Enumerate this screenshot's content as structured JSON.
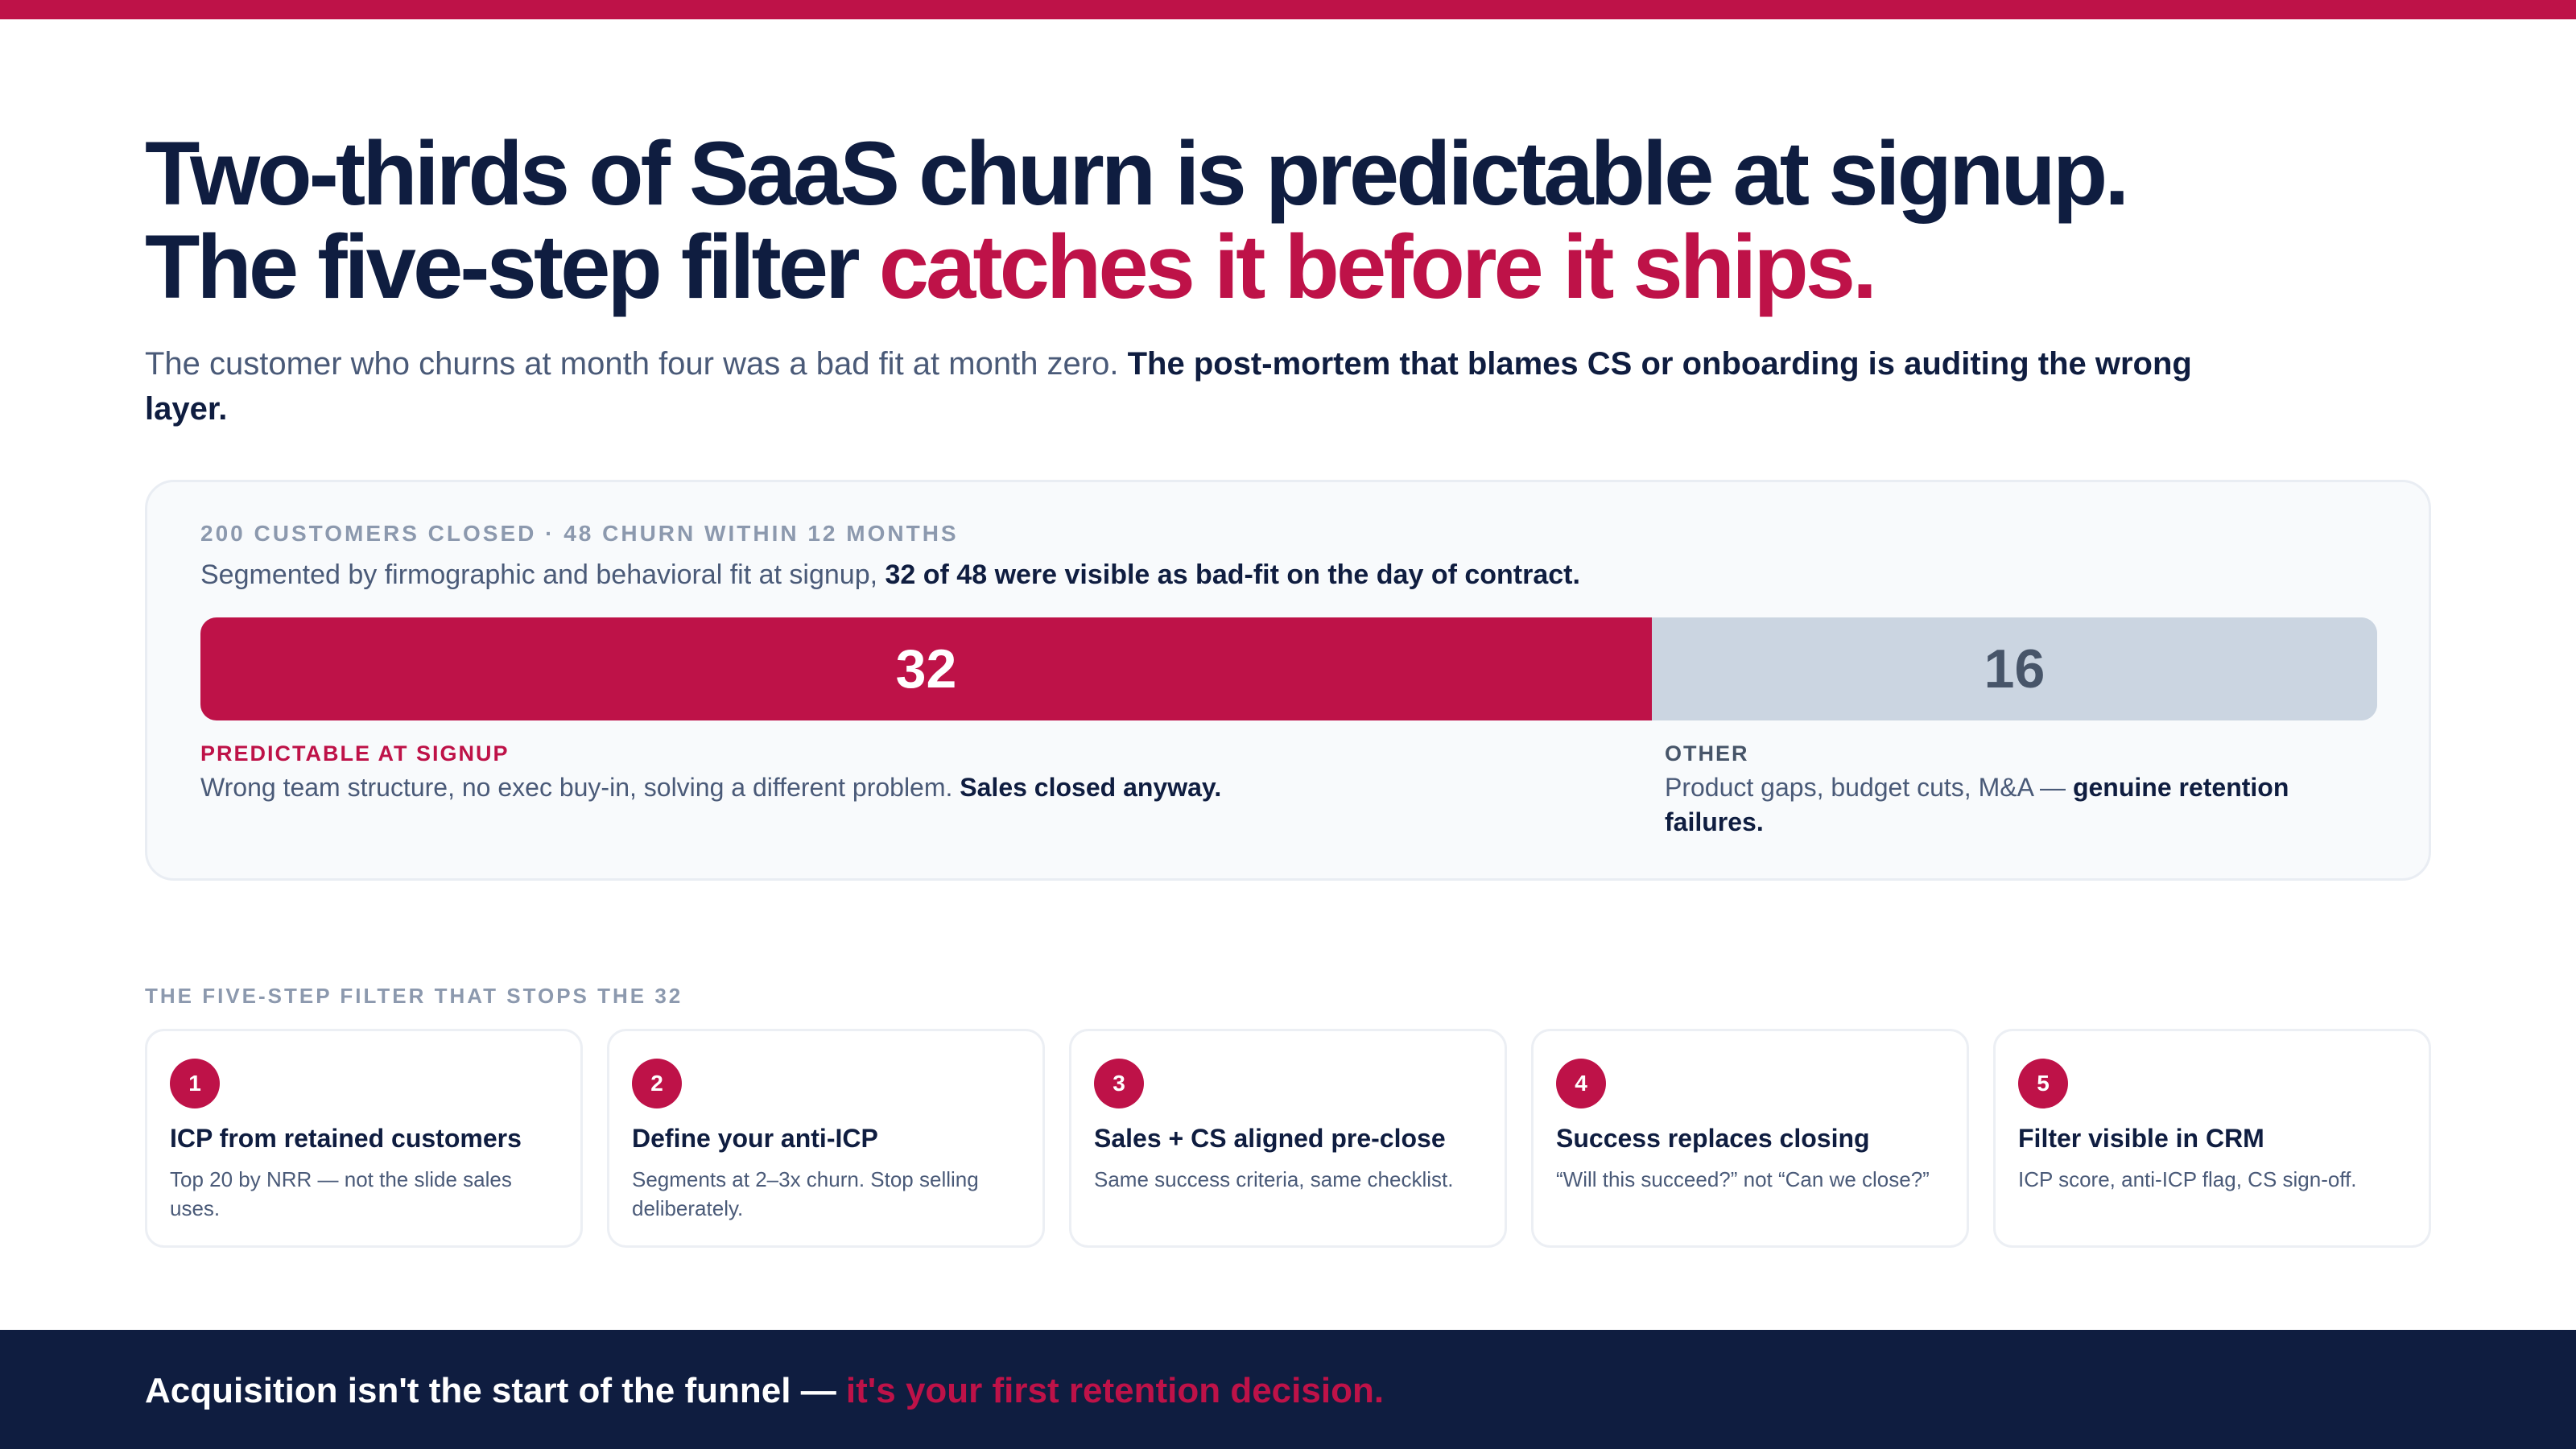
{
  "colors": {
    "accent": "#be1248",
    "navy": "#0f1d40",
    "muted": "#4a5a78",
    "other_bar": "#cbd5e1"
  },
  "headline": {
    "line1": "Two-thirds of SaaS churn is predictable at signup.",
    "line2_plain": "The five-step filter ",
    "line2_accent": "catches it before it ships."
  },
  "subhead": {
    "plain": "The customer who churns at month four was a bad fit at month zero. ",
    "bold": "The post-mortem that blames CS or onboarding is auditing the wrong layer."
  },
  "panel": {
    "eyebrow": "200 CUSTOMERS CLOSED · 48 CHURN WITHIN 12 MONTHS",
    "desc_plain": "Segmented by firmographic and behavioral fit at signup, ",
    "desc_bold": "32 of 48 were visible as bad-fit on the day of contract.",
    "total": 48,
    "segments": [
      {
        "value": 32,
        "label": "32",
        "title": "PREDICTABLE AT SIGNUP",
        "text_plain": "Wrong team structure, no exec buy-in, solving a different problem. ",
        "text_bold": "Sales closed anyway."
      },
      {
        "value": 16,
        "label": "16",
        "title": "OTHER",
        "text_plain": "Product gaps, budget cuts, M&A — ",
        "text_bold": "genuine retention failures."
      }
    ]
  },
  "steps": {
    "eyebrow": "THE FIVE-STEP FILTER THAT STOPS THE 32",
    "items": [
      {
        "num": "1",
        "title": "ICP from retained customers",
        "desc": "Top 20 by NRR — not the slide sales uses."
      },
      {
        "num": "2",
        "title": "Define your anti-ICP",
        "desc": "Segments at 2–3x churn. Stop selling deliberately."
      },
      {
        "num": "3",
        "title": "Sales + CS aligned pre-close",
        "desc": "Same success criteria, same checklist."
      },
      {
        "num": "4",
        "title": "Success replaces closing",
        "desc": "“Will this succeed?” not “Can we close?”"
      },
      {
        "num": "5",
        "title": "Filter visible in CRM",
        "desc": "ICP score, anti-ICP flag, CS sign-off."
      }
    ]
  },
  "footer": {
    "plain": "Acquisition isn't the start of the funnel — ",
    "accent": "it's your first retention decision."
  }
}
